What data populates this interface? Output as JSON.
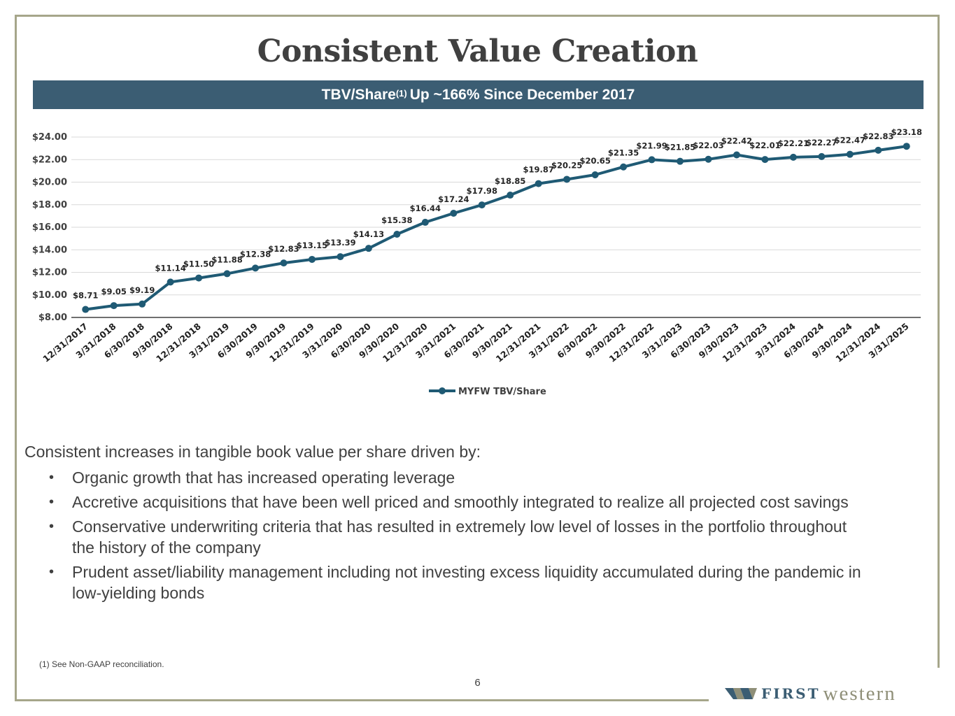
{
  "slide": {
    "title": "Consistent Value Creation",
    "banner_text": "TBV/Share",
    "banner_sup": "(1)",
    "banner_rest": "Up ~166% Since December 2017",
    "intro": "Consistent increases in tangible book value per share driven by:",
    "bullets": [
      "Organic growth that has increased operating leverage",
      "Accretive acquisitions that have been well priced and smoothly integrated to realize all projected cost savings",
      "Conservative underwriting criteria that has resulted in extremely low level of losses in the portfolio throughout the history of the company",
      "Prudent asset/liability management including not investing excess liquidity accumulated during the pandemic in low-yielding bonds"
    ],
    "footnote": "(1)  See Non-GAAP reconciliation.",
    "page_number": "6",
    "logo_first": "FIRST",
    "logo_western": "western",
    "bullet_glyph": "•"
  },
  "colors": {
    "frame": "#a6a68a",
    "banner": "#3b5d73",
    "series": "#1f5a74"
  },
  "chart_data": {
    "type": "line",
    "categories": [
      "12/31/2017",
      "3/31/2018",
      "6/30/2018",
      "9/30/2018",
      "12/31/2018",
      "3/31/2019",
      "6/30/2019",
      "9/30/2019",
      "12/31/2019",
      "3/31/2020",
      "6/30/2020",
      "9/30/2020",
      "12/31/2020",
      "3/31/2021",
      "6/30/2021",
      "9/30/2021",
      "12/31/2021",
      "3/31/2022",
      "6/30/2022",
      "9/30/2022",
      "12/31/2022",
      "3/31/2023",
      "6/30/2023",
      "9/30/2023",
      "12/31/2023",
      "3/31/2024",
      "6/30/2024",
      "9/30/2024",
      "12/31/2024",
      "3/31/2025"
    ],
    "series": [
      {
        "name": "MYFW TBV/Share",
        "values": [
          8.71,
          9.05,
          9.19,
          11.14,
          11.5,
          11.88,
          12.38,
          12.83,
          13.15,
          13.39,
          14.13,
          15.38,
          16.44,
          17.24,
          17.98,
          18.85,
          19.87,
          20.25,
          20.65,
          21.35,
          21.99,
          21.85,
          22.03,
          22.42,
          22.01,
          22.21,
          22.27,
          22.47,
          22.83,
          23.18
        ]
      }
    ],
    "data_labels": [
      "$8.71",
      "$9.05",
      "$9.19",
      "$11.14",
      "$11.50",
      "$11.88",
      "$12.38",
      "$12.83",
      "$13.15",
      "$13.39",
      "$14.13",
      "$15.38",
      "$16.44",
      "$17.24",
      "$17.98",
      "$18.85",
      "$19.87",
      "$20.25",
      "$20.65",
      "$21.35",
      "$21.99",
      "$21.85",
      "$22.03",
      "$22.42",
      "$22.01",
      "$22.21",
      "$22.27",
      "$22.47",
      "$22.83",
      "$23.18"
    ],
    "yticks": [
      8,
      10,
      12,
      14,
      16,
      18,
      20,
      22,
      24
    ],
    "ytick_labels": [
      "$8.00",
      "$10.00",
      "$12.00",
      "$14.00",
      "$16.00",
      "$18.00",
      "$20.00",
      "$22.00",
      "$24.00"
    ],
    "ylim": [
      8,
      24
    ],
    "legend": "bottom-center",
    "grid": true
  }
}
